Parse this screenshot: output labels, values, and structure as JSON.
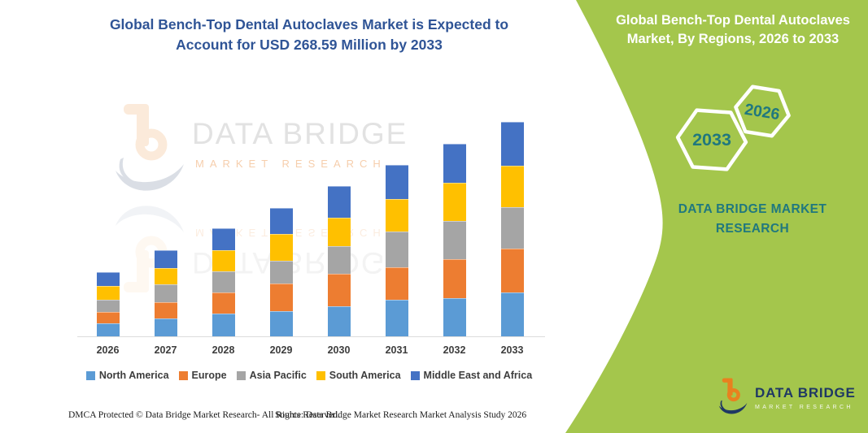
{
  "header": {
    "title_line1": "Global Bench-Top Dental Autoclaves Market is Expected to",
    "title_line2": "Account for USD 268.59 Million by 2033"
  },
  "panel": {
    "title_line1": "Global Bench-Top Dental Autoclaves",
    "title_line2": "Market, By Regions, 2026 to 2033",
    "hexagon_back_label": "2033",
    "hexagon_front_label": "2026",
    "brand_line1": "DATA BRIDGE MARKET",
    "brand_line2": "RESEARCH",
    "logo_title": "DATA BRIDGE",
    "logo_subtitle": "MARKET RESEARCH"
  },
  "watermark": {
    "title": "DATA BRIDGE",
    "subtitle": "MARKET RESEARCH"
  },
  "footer": {
    "dmca": "DMCA Protected © Data Bridge Market Research-  All Rights Reserved.",
    "source": "Source: Data Bridge Market Research  Market Analysis Study 2026"
  },
  "colors": {
    "panel_green": "#A4C64C",
    "teal_text": "#20787E",
    "title_blue": "#2F5496",
    "logo_navy": "#1F3864",
    "logo_orange": "#E8811F",
    "axis_gray": "#DCDCDC",
    "label_gray": "#3D3D3D"
  },
  "chart_data": {
    "type": "bar",
    "stacked": true,
    "title": "Global Bench-Top Dental Autoclaves Market, By Regions, 2026 to 2033 (USD Million)",
    "xlabel": "",
    "ylabel": "",
    "unit": "USD Million",
    "grid": false,
    "legend_position": "bottom",
    "categories": [
      "2026",
      "2027",
      "2028",
      "2029",
      "2030",
      "2031",
      "2032",
      "2033"
    ],
    "series": [
      {
        "name": "North America",
        "color": "#5B9BD5",
        "values": [
          16,
          22,
          28,
          32,
          38,
          46,
          48,
          55.4
        ]
      },
      {
        "name": "Europe",
        "color": "#ED7D31",
        "values": [
          15,
          21,
          27,
          34,
          40,
          40,
          49,
          54.0
        ]
      },
      {
        "name": "Asia Pacific",
        "color": "#A5A5A5",
        "values": [
          15,
          22,
          26,
          29,
          35,
          45,
          48,
          52.0
        ]
      },
      {
        "name": "South America",
        "color": "#FFC000",
        "values": [
          17,
          21,
          27,
          33,
          36,
          41,
          47,
          52.7
        ]
      },
      {
        "name": "Middle East and Africa",
        "color": "#4472C4",
        "values": [
          17,
          22,
          27,
          33,
          39,
          43,
          49,
          54.49
        ]
      }
    ],
    "totals": [
      80,
      108,
      135,
      161,
      188,
      215,
      241,
      268.59
    ],
    "ylim": [
      0,
      268.59
    ],
    "annotation": "Total market expected to account for USD 268.59 Million by 2033"
  }
}
